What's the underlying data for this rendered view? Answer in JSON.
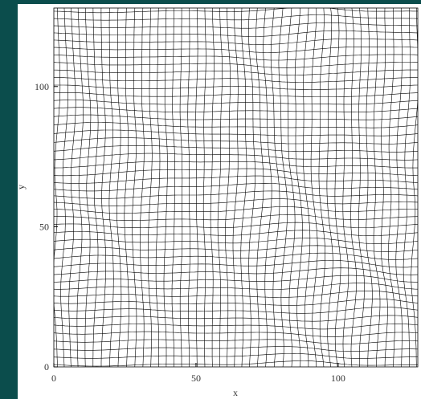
{
  "chart_data": {
    "type": "mesh",
    "xlabel": "x",
    "ylabel": "y",
    "xlim": [
      0,
      128
    ],
    "ylim": [
      0,
      128
    ],
    "xticks": [
      0,
      50,
      100
    ],
    "yticks": [
      0,
      50,
      100
    ]
  }
}
